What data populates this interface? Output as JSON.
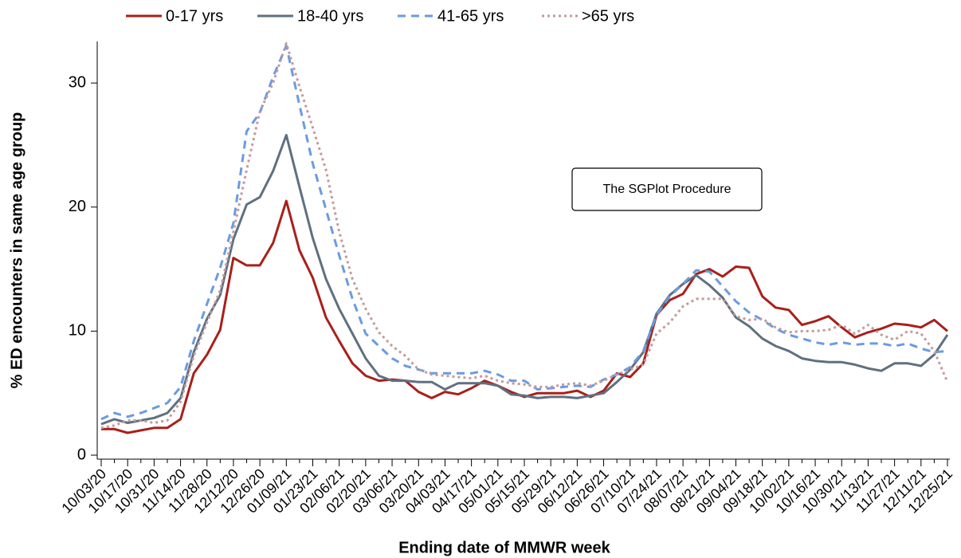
{
  "chart_data": {
    "type": "line",
    "x_label": "Ending date of MMWR week",
    "y_label": "% ED encounters in same age group",
    "annotation": "The SGPlot Procedure",
    "categories": [
      "10/03/20",
      null,
      "10/17/20",
      null,
      "10/31/20",
      null,
      "11/14/20",
      null,
      "11/28/20",
      null,
      "12/12/20",
      null,
      "12/26/20",
      null,
      "01/09/21",
      null,
      "01/23/21",
      null,
      "02/06/21",
      null,
      "02/20/21",
      null,
      "03/06/21",
      null,
      "03/20/21",
      null,
      "04/03/21",
      null,
      "04/17/21",
      null,
      "05/01/21",
      null,
      "05/15/21",
      null,
      "05/29/21",
      null,
      "06/12/21",
      null,
      "06/26/21",
      null,
      "07/10/21",
      null,
      "07/24/21",
      null,
      "08/07/21",
      null,
      "08/21/21",
      null,
      "09/04/21",
      null,
      "09/18/21",
      null,
      "10/02/21",
      null,
      "10/16/21",
      null,
      "10/30/21",
      null,
      "11/13/21",
      null,
      "11/27/21",
      null,
      "12/11/21",
      null,
      "12/25/21"
    ],
    "ylim": [
      0,
      33.8
    ],
    "yticks": [
      0,
      10,
      20,
      30
    ],
    "grid": false,
    "legend": "top",
    "series": [
      {
        "name": "0-17 yrs",
        "color": "#a8201a",
        "line_style": "solid",
        "values": [
          2.1,
          2.1,
          1.8,
          2.0,
          2.2,
          2.2,
          2.9,
          6.6,
          8.1,
          10.1,
          15.9,
          15.3,
          15.3,
          17.1,
          20.5,
          16.5,
          14.3,
          11.1,
          9.2,
          7.4,
          6.4,
          6.0,
          6.1,
          6.0,
          5.1,
          4.6,
          5.1,
          4.9,
          5.4,
          6.0,
          5.6,
          5.1,
          4.7,
          5.0,
          5.0,
          5.0,
          5.2,
          4.7,
          5.2,
          6.6,
          6.3,
          7.4,
          11.3,
          12.5,
          13.0,
          14.6,
          15.0,
          14.4,
          15.2,
          15.1,
          12.8,
          11.9,
          11.7,
          10.5,
          10.8,
          11.2,
          10.3,
          9.5,
          9.9,
          10.2,
          10.6,
          10.5,
          10.3,
          10.9,
          10.0
        ]
      },
      {
        "name": "18-40 yrs",
        "color": "#5f7080",
        "line_style": "solid",
        "values": [
          2.5,
          2.9,
          2.6,
          2.8,
          3.0,
          3.4,
          4.6,
          8.3,
          11.0,
          12.9,
          17.4,
          20.2,
          20.8,
          22.9,
          25.8,
          21.6,
          17.5,
          14.2,
          11.8,
          9.8,
          7.8,
          6.4,
          6.0,
          6.0,
          5.9,
          5.9,
          5.3,
          5.8,
          5.8,
          5.8,
          5.6,
          4.9,
          4.8,
          4.6,
          4.7,
          4.7,
          4.6,
          4.8,
          5.0,
          5.9,
          6.9,
          8.3,
          11.4,
          12.9,
          13.8,
          14.5,
          13.7,
          12.7,
          11.1,
          10.4,
          9.4,
          8.8,
          8.4,
          7.8,
          7.6,
          7.5,
          7.5,
          7.3,
          7.0,
          6.8,
          7.4,
          7.4,
          7.2,
          8.1,
          9.7
        ]
      },
      {
        "name": "41-65 yrs",
        "color": "#6a9be0",
        "line_style": "dashed",
        "values": [
          2.9,
          3.4,
          3.1,
          3.4,
          3.8,
          4.2,
          5.5,
          9.2,
          12.2,
          15.1,
          18.7,
          26.1,
          27.6,
          30.5,
          33.0,
          28.2,
          23.5,
          19.8,
          16.1,
          12.6,
          9.8,
          8.8,
          7.8,
          7.2,
          6.9,
          6.6,
          6.6,
          6.6,
          6.6,
          6.8,
          6.5,
          6.0,
          6.0,
          5.3,
          5.4,
          5.5,
          5.6,
          5.5,
          6.1,
          6.5,
          7.1,
          8.4,
          11.3,
          12.8,
          13.8,
          14.9,
          14.8,
          13.6,
          12.4,
          11.5,
          10.9,
          10.2,
          9.7,
          9.4,
          9.1,
          8.9,
          9.1,
          8.9,
          9.0,
          9.0,
          8.8,
          9.0,
          8.6,
          8.3,
          8.4
        ]
      },
      {
        "name": ">65 yrs",
        "color": "#c49a9a",
        "line_style": "dotted",
        "values": [
          2.2,
          2.4,
          2.8,
          2.8,
          2.6,
          2.8,
          4.3,
          8.0,
          10.7,
          13.3,
          18.0,
          23.0,
          27.7,
          30.0,
          33.2,
          29.7,
          26.4,
          23.0,
          18.0,
          14.2,
          11.8,
          9.9,
          8.8,
          8.0,
          6.9,
          6.5,
          6.4,
          6.3,
          6.2,
          6.4,
          6.0,
          5.8,
          5.7,
          5.5,
          5.5,
          5.7,
          5.8,
          5.6,
          6.0,
          6.5,
          6.9,
          7.3,
          9.8,
          10.7,
          12.0,
          12.6,
          12.6,
          12.6,
          11.2,
          10.9,
          11.0,
          10.3,
          9.9,
          10.0,
          10.0,
          10.1,
          10.5,
          9.8,
          10.5,
          9.7,
          9.3,
          10.0,
          9.8,
          8.4,
          5.9
        ]
      }
    ]
  }
}
